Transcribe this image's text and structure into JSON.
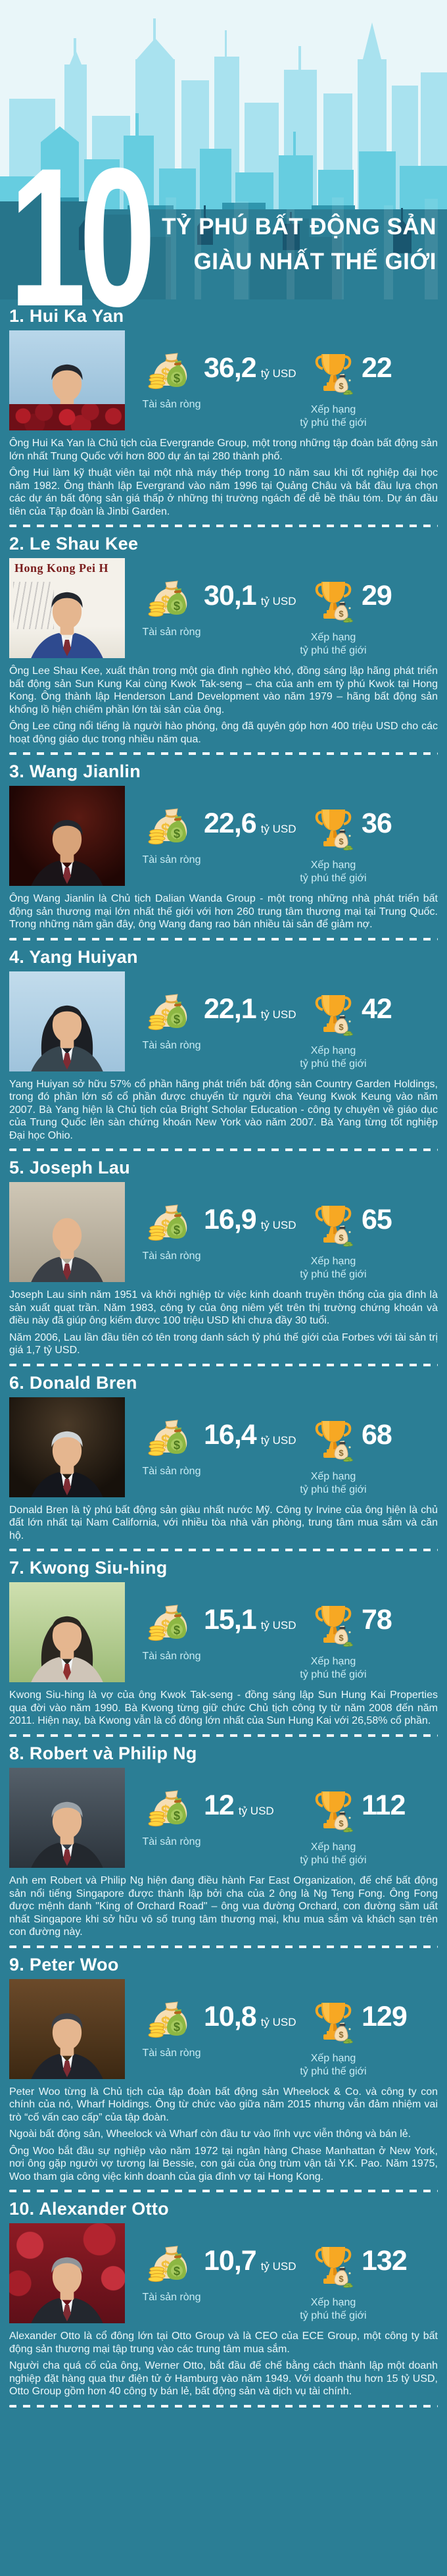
{
  "header": {
    "big_number": "10",
    "title_line1": "TỶ PHÚ BẤT ĐỘNG SẢN",
    "title_line2": "GIÀU NHẤT THẾ GIỚI"
  },
  "stats_labels": {
    "net_worth": "Tài sản ròng",
    "rank_line1": "Xếp hạng",
    "rank_line2": "tỷ phú thế giới",
    "currency_unit": "tỷ USD"
  },
  "icons": {
    "net_worth_icon": "money-bags-icon",
    "rank_icon": "trophy-icon"
  },
  "colors": {
    "teal_background": "#2b7e95",
    "sky": "#e9f6f9",
    "skyline_far": "#a9e2ef",
    "skyline_mid": "#66cde0",
    "skyline_near": "#2f95ad",
    "skyline_silhouette": "#27758b",
    "skyline_dark": "#19566f",
    "label_cyan": "#c9ecf4",
    "desc_text": "#ecf8fb",
    "trophy_gold": "#f7a823",
    "coin_yellow": "#ffd43d",
    "bag_cream": "#f6deb4",
    "bag_green": "#8db743"
  },
  "people": [
    {
      "label": "1. Hui Ka Yan",
      "net_worth": "36,2",
      "rank": "22",
      "paragraphs": [
        "Ông Hui Ka Yan là Chủ tịch của Evergrande Group, một trong những tập đoàn bất động sản lớn nhất Trung Quốc với hơn 800 dự án tại 280 thành phố.",
        "Ông Hui làm kỹ thuật viên tại một nhà máy thép trong 10 năm sau khi tốt nghiệp đại học năm 1982. Ông thành lập Evergrand vào năm 1996 tại Quảng Châu và bắt đầu lựa chọn các dự án bất động sản giá thấp ở những thị trường ngách để dễ bề thâu tóm. Dự án đầu tiên của Tập đoàn là Jinbi Garden."
      ]
    },
    {
      "label": "2. Le Shau Kee",
      "net_worth": "30,1",
      "rank": "29",
      "photo_text": "Hong Kong Pei H",
      "paragraphs": [
        "Ông Lee Shau Kee, xuất thân trong một gia đình nghèo khó, đồng sáng lập hãng phát triển bất động sản Sun Kung Kai cùng Kwok Tak-seng – cha của anh em tỷ phú Kwok tại Hong Kong. Ông thành lập Henderson Land Development vào năm 1979 – hãng bất động sản khổng lồ hiện chiếm phần lớn tài sản của ông.",
        "Ông Lee cũng nổi tiếng là người hào phóng, ông đã quyên góp hơn 400 triệu USD cho các hoạt động giáo dục trong nhiều năm qua."
      ]
    },
    {
      "label": "3. Wang Jianlin",
      "net_worth": "22,6",
      "rank": "36",
      "paragraphs": [
        "Ông Wang Jianlin là Chủ tịch Dalian Wanda Group - một trong những nhà phát triển bất động sản thương mại lớn nhất thế giới với hơn 260 trung tâm thương mại tại Trung Quốc. Trong những năm gần đây, ông Wang đang rao bán nhiều tài sản để giảm nợ."
      ]
    },
    {
      "label": "4. Yang Huiyan",
      "net_worth": "22,1",
      "rank": "42",
      "paragraphs": [
        "Yang Huiyan sở hữu 57% cổ phần hãng phát triển bất động sản Country Garden Holdings, trong đó phần lớn số cổ phần được chuyển từ người cha Yeung Kwok Keung vào năm 2007. Bà Yang hiện là Chủ tịch của Bright Scholar Education - công ty chuyên về giáo dục của Trung Quốc lên sàn chứng khoán New York vào năm 2007. Bà Yang từng tốt nghiệp Đại học Ohio."
      ]
    },
    {
      "label": "5. Joseph Lau",
      "net_worth": "16,9",
      "rank": "65",
      "paragraphs": [
        "Joseph Lau sinh năm 1951 và khởi nghiệp từ việc kinh doanh truyền thống của gia đình là sản xuất quạt trần. Năm 1983, công ty của ông niêm yết trên thị trường chứng khoán và điều này đã giúp ông kiếm được 100 triệu USD khi chưa đầy 30 tuổi.",
        "Năm 2006, Lau lần đầu tiên có tên trong danh sách tỷ phú thế giới của Forbes với tài sản trị giá 1,7 tỷ USD."
      ]
    },
    {
      "label": "6. Donald Bren",
      "net_worth": "16,4",
      "rank": "68",
      "paragraphs": [
        "Donald Bren là tỷ phú bất động sản giàu nhất nước Mỹ. Công ty Irvine của ông hiện là chủ đất lớn nhất tại Nam California, với nhiều tòa nhà văn phòng, trung tâm mua sắm và căn hộ."
      ]
    },
    {
      "label": "7. Kwong Siu-hing",
      "net_worth": "15,1",
      "rank": "78",
      "paragraphs": [
        "Kwong Siu-hing là vợ của ông Kwok Tak-seng - đồng sáng lập Sun Hung Kai Properties qua đời vào năm 1990. Bà Kwong từng giữ chức Chủ tịch công ty từ năm 2008 đến năm 2011. Hiện nay, bà Kwong vẫn là cổ đông lớn nhất của Sun Hung Kai với 26,58% cổ phần."
      ]
    },
    {
      "label": "8. Robert và Philip Ng",
      "net_worth": "12",
      "rank": "112",
      "paragraphs": [
        "Anh em Robert và Philip Ng hiện đang điều hành Far East Organization, đế chế bất động sản nổi tiếng Singapore được thành lập bởi cha của 2 ông là Ng Teng Fong. Ông Fong được mệnh danh \"King of Orchard Road\" – ông vua đường Orchard, con đường sầm uất nhất Singapore khi sở hữu vô số trung tâm thương mại, khu mua sắm và khách sạn trên con đường này."
      ]
    },
    {
      "label": "9. Peter Woo",
      "net_worth": "10,8",
      "rank": "129",
      "paragraphs": [
        "Peter Woo từng là Chủ tịch của tập đoàn bất động sản Wheelock & Co. và công ty con chính của nó, Wharf Holdings. Ông từ chức vào giữa năm 2015 nhưng vẫn đảm nhiệm vai trò “cố vấn cao cấp” của tập đoàn.",
        "Ngoài bất động sản, Wheelock và Wharf còn đầu tư vào lĩnh vực viễn thông và bán lẻ.",
        "Ông Woo bắt đầu sự nghiệp vào năm 1972 tại ngân hàng Chase Manhattan ở New York, nơi ông gặp người vợ tương lai Bessie, con gái của ông trùm vận tải Y.K. Pao. Năm 1975, Woo tham gia công việc kinh doanh của gia đình vợ tại Hong Kong."
      ]
    },
    {
      "label": "10. Alexander Otto",
      "net_worth": "10,7",
      "rank": "132",
      "paragraphs": [
        "Alexander Otto là cổ đông lớn tại Otto Group và là CEO của ECE Group, một công ty bất động sản thương mại tập trung vào các trung tâm mua sắm.",
        "Người cha quá cố của ông, Werner Otto, bắt đầu đế chế bằng cách thành lập một doanh nghiệp đặt hàng qua thư điện tử ở Hamburg vào năm 1949. Với doanh thu hơn 15 tỷ USD, Otto Group gồm hơn 40 công ty bán lẻ, bất động sản và dịch vụ tài chính."
      ]
    }
  ]
}
